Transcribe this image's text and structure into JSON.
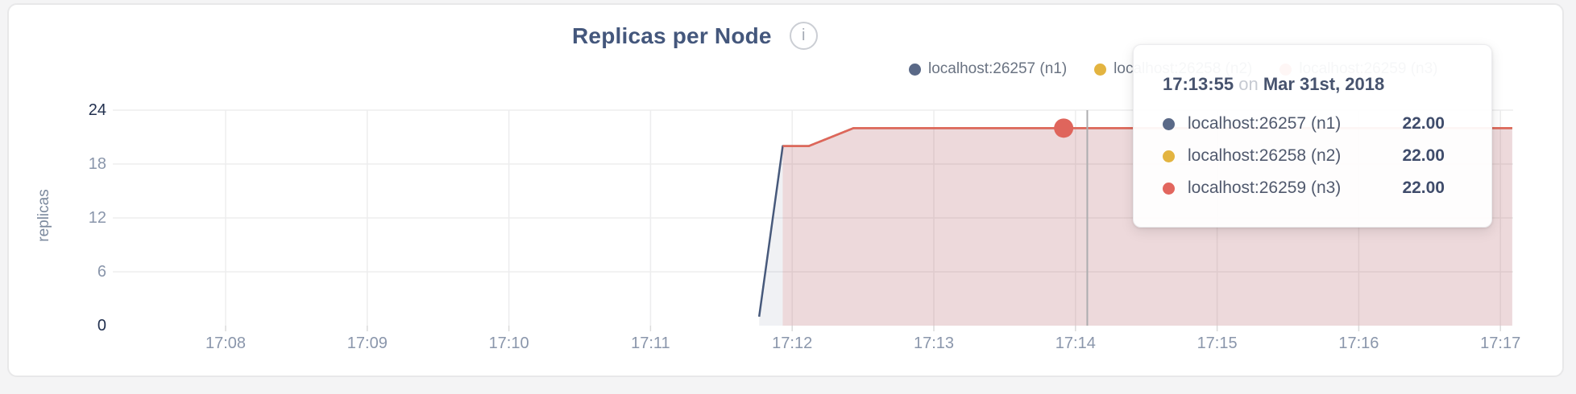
{
  "header": {
    "title": "Replicas per Node",
    "info_icon_glyph": "i"
  },
  "legend": [
    {
      "label": "localhost:26257 (n1)",
      "color": "#5a6987"
    },
    {
      "label": "localhost:26258 (n2)",
      "color": "#e3b440"
    },
    {
      "label": "localhost:26259 (n3)",
      "color": "#e2665e"
    }
  ],
  "chart_data": {
    "type": "area",
    "title": "Replicas per Node",
    "ylabel": "replicas",
    "xlabel": "",
    "ylim": [
      0,
      24
    ],
    "y_ticks": [
      0,
      6,
      12,
      18,
      24
    ],
    "x_ticks": [
      "17:08",
      "17:09",
      "17:10",
      "17:11",
      "17:12",
      "17:13",
      "17:14",
      "17:15",
      "17:16",
      "17:17"
    ],
    "grid": true,
    "legend_position": "top-right",
    "series": [
      {
        "name": "localhost:26257 (n1)",
        "line_color": "#47597b",
        "fill_color": "rgba(90,105,135,0.09)",
        "points": [
          [
            "17:11:46",
            1
          ],
          [
            "17:11:56",
            20
          ],
          [
            "17:12:07",
            20
          ],
          [
            "17:12:26",
            22
          ],
          [
            "17:17:05",
            22
          ]
        ]
      },
      {
        "name": "localhost:26258 (n2)",
        "line_color": "#e3b440",
        "fill_color": "rgba(227,180,64,0.0)",
        "points": [
          [
            "17:11:56",
            20
          ],
          [
            "17:12:07",
            20
          ],
          [
            "17:12:26",
            22
          ],
          [
            "17:17:05",
            22
          ]
        ]
      },
      {
        "name": "localhost:26259 (n3)",
        "line_color": "#df655c",
        "fill_color": "rgba(224,102,93,0.17)",
        "points": [
          [
            "17:11:56",
            20
          ],
          [
            "17:12:07",
            20
          ],
          [
            "17:12:26",
            22
          ],
          [
            "17:17:05",
            22
          ]
        ]
      }
    ],
    "highlight": {
      "time": "17:13:55",
      "value": 22,
      "dot_color": "#df655c",
      "crosshair_time": "17:14:05",
      "crosshair_color": "#adadaf"
    }
  },
  "tooltip": {
    "time": "17:13:55",
    "conjunction": "on",
    "date": "Mar 31st, 2018",
    "rows": [
      {
        "label": "localhost:26257 (n1)",
        "value": "22.00",
        "color": "#5a6987"
      },
      {
        "label": "localhost:26258 (n2)",
        "value": "22.00",
        "color": "#e3b440"
      },
      {
        "label": "localhost:26259 (n3)",
        "value": "22.00",
        "color": "#e2665e"
      }
    ]
  }
}
